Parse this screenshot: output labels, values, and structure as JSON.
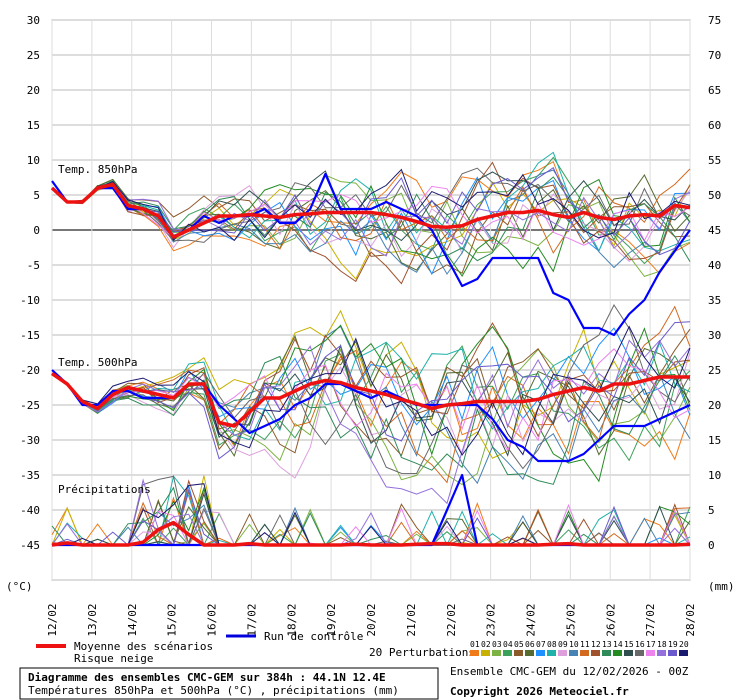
{
  "chart_data": {
    "type": "line",
    "title": "Diagramme des ensembles CMC-GEM sur 384h : 44.1N 12.4E",
    "subtitle": "Températures 850hPa et 500hPa (°C) , précipitations (mm)",
    "left_unit": "(°C)",
    "right_unit": "(mm)",
    "y_left_ticks": [
      30,
      25,
      20,
      15,
      10,
      5,
      0,
      -5,
      -10,
      -15,
      -20,
      -25,
      -30,
      -35,
      -40,
      -45
    ],
    "y_right_ticks": [
      75,
      70,
      65,
      60,
      55,
      50,
      45,
      40,
      35,
      30,
      25,
      20,
      15,
      10,
      5,
      0
    ],
    "ylim": [
      -50,
      30
    ],
    "x_ticks": [
      "12/02",
      "13/02",
      "14/02",
      "15/02",
      "16/02",
      "17/02",
      "18/02",
      "19/02",
      "20/02",
      "21/02",
      "22/02",
      "23/02",
      "24/02",
      "25/02",
      "26/02",
      "27/02",
      "28/02"
    ],
    "panel_labels": [
      "Temp. 850hPa",
      "Temp. 500hPa",
      "Précipitations"
    ],
    "series": [
      {
        "name": "Moyenne des scénarios",
        "panel": "850",
        "color": "#ee1111",
        "values": [
          6,
          4,
          4,
          6,
          6.5,
          3.5,
          3,
          2,
          -1,
          0,
          1,
          2,
          2,
          2.2,
          2,
          1.8,
          2.2,
          2.3,
          2.5,
          2.5,
          2.5,
          2.5,
          2.2,
          1.8,
          1.2,
          0.5,
          0.4,
          0.6,
          1.5,
          2,
          2.5,
          2.5,
          2.8,
          2.2,
          1.8,
          2.5,
          1.8,
          1.5,
          2,
          2.2,
          2,
          3.5,
          3.2
        ]
      },
      {
        "name": "Run de contrôle",
        "panel": "850",
        "color": "#0000ff",
        "values": [
          7,
          4,
          4,
          6,
          6,
          3,
          3,
          2,
          -1,
          0,
          2,
          1,
          2,
          2,
          3,
          1,
          1,
          3,
          8,
          3,
          3,
          3,
          4,
          3,
          2,
          0,
          -4,
          -8,
          -7,
          -4,
          -4,
          -4,
          -4,
          -9,
          -10,
          -14,
          -14,
          -15,
          -12,
          -10,
          -6,
          -3,
          0
        ]
      },
      {
        "name": "Moyenne des scénarios",
        "panel": "500",
        "color": "#ee1111",
        "values": [
          -20.5,
          -22,
          -24.5,
          -25.5,
          -23.5,
          -22.5,
          -23,
          -23.5,
          -24,
          -22,
          -22,
          -27.5,
          -28,
          -26,
          -24,
          -24,
          -23,
          -22,
          -21.5,
          -21.8,
          -22.5,
          -23,
          -23.5,
          -24.2,
          -24.8,
          -25.5,
          -25,
          -24.8,
          -24.5,
          -24.5,
          -24.5,
          -24.5,
          -24.2,
          -23.5,
          -23,
          -22.5,
          -23,
          -22,
          -22,
          -21.5,
          -21,
          -21,
          -21
        ]
      },
      {
        "name": "Run de contrôle",
        "panel": "500",
        "color": "#0000ff",
        "values": [
          -20,
          -22,
          -25,
          -25,
          -23,
          -23,
          -24,
          -24,
          -24,
          -22,
          -22,
          -25,
          -27,
          -29,
          -28,
          -27,
          -25,
          -24,
          -22,
          -22,
          -23,
          -24,
          -23,
          -24,
          -25,
          -25,
          -25,
          -25,
          -25,
          -27,
          -30,
          -31,
          -33,
          -33,
          -33,
          -32,
          -30,
          -28,
          -28,
          -28,
          -27,
          -26,
          -25
        ]
      },
      {
        "name": "Moyenne des scénarios",
        "panel": "precip",
        "color": "#ee1111",
        "values": [
          0,
          0.3,
          0,
          0,
          0,
          0,
          0.4,
          2.2,
          3.2,
          1.5,
          0,
          0,
          0,
          0.2,
          0,
          0,
          0,
          0,
          0,
          0,
          0.1,
          0,
          0,
          0,
          0.1,
          0.2,
          0.2,
          0,
          0,
          0,
          0,
          0,
          0,
          0.1,
          0.2,
          0,
          0,
          0,
          0,
          0,
          0,
          0,
          0.1
        ]
      },
      {
        "name": "Run de contrôle",
        "panel": "precip",
        "color": "#0000ff",
        "values": [
          0,
          0,
          0,
          0,
          0,
          0,
          0,
          0,
          0,
          0,
          0,
          0,
          0,
          0,
          0,
          0,
          0,
          0,
          0,
          0,
          0,
          0,
          0,
          0,
          0,
          0,
          5,
          10,
          0,
          0,
          0,
          0,
          0,
          0,
          0,
          0,
          0,
          0,
          0,
          0,
          0,
          0,
          0
        ]
      }
    ],
    "perturbation_colors": [
      "#f07a17",
      "#c8b000",
      "#7cb342",
      "#3aa05a",
      "#8b5a2b",
      "#556b2f",
      "#1e90ff",
      "#20b2aa",
      "#dda0dd",
      "#4682b4",
      "#d2691e",
      "#a0522d",
      "#2e8b57",
      "#228b22",
      "#2f4f4f",
      "#696969",
      "#ee82ee",
      "#9370db",
      "#6a5acd",
      "#191970"
    ],
    "perturbation_count": 20,
    "grid": true
  },
  "legend": {
    "mean_label": "Moyenne des scénarios",
    "control_label": "Run de contrôle",
    "snow_label": "Risque neige",
    "perturbations_label": "20 Perturbations",
    "perturbation_ids": [
      "01",
      "02",
      "03",
      "04",
      "05",
      "06",
      "07",
      "08",
      "09",
      "10",
      "11",
      "12",
      "13",
      "14",
      "15",
      "16",
      "17",
      "18",
      "19",
      "20"
    ]
  },
  "footer": {
    "ensemble_label": "Ensemble CMC-GEM du 12/02/2026 - 00Z",
    "copyright": "Copyright 2026 Meteociel.fr"
  }
}
